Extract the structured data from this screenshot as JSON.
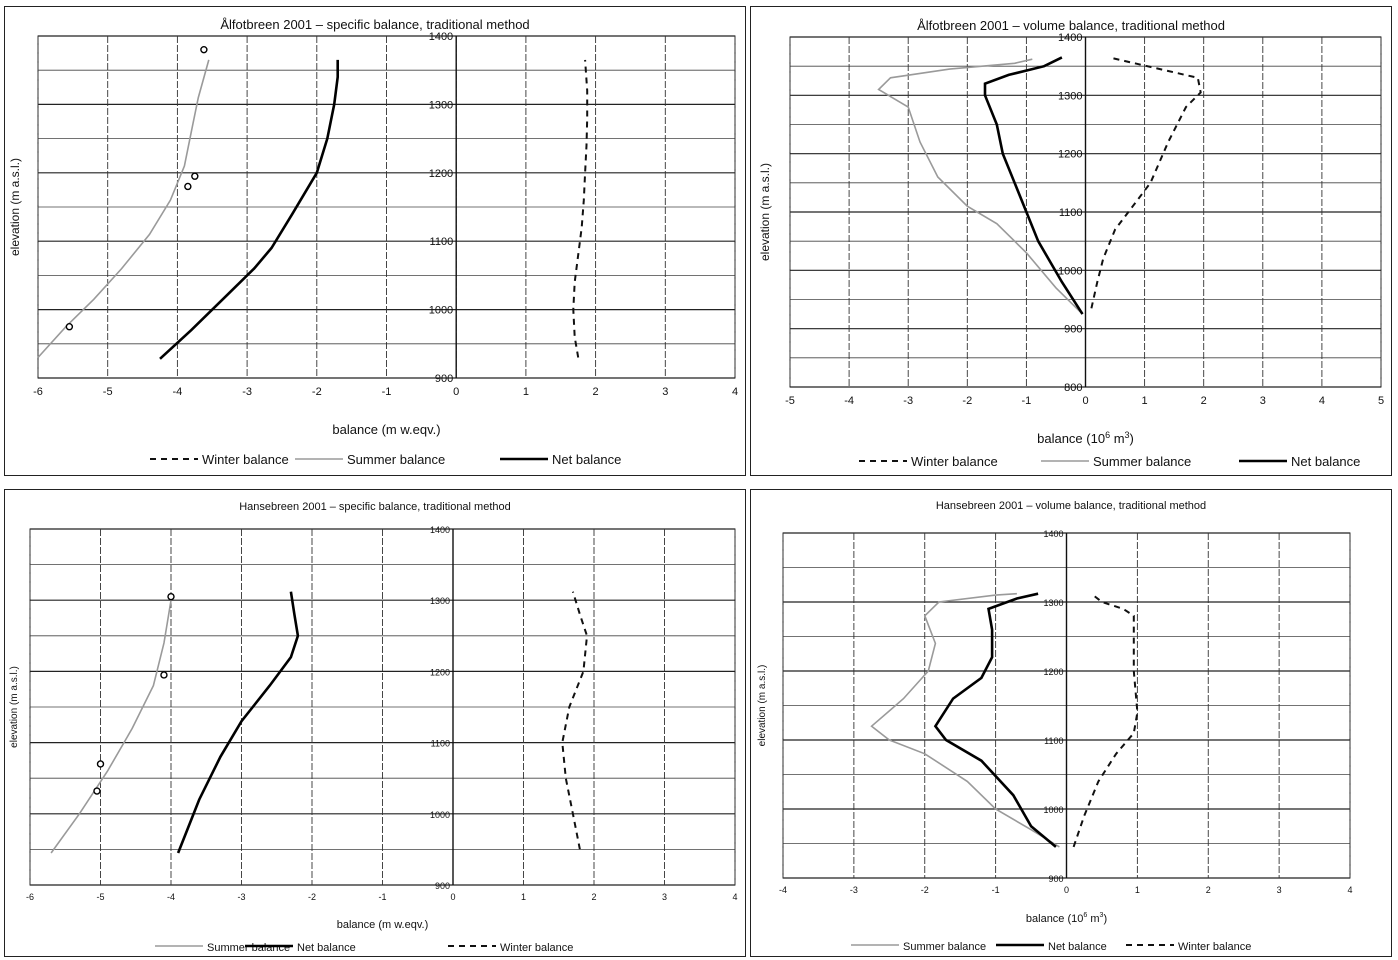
{
  "chart_data": [
    {
      "type": "line",
      "title": "Ålfotbreen  2001 –  specific balance, traditional method",
      "xlabel": "balance (m w.eqv.)",
      "ylabel": "elevation (m a.s.l.)",
      "xlim": [
        -6,
        4
      ],
      "ylim": [
        900,
        1400
      ],
      "xticks": [
        "-6",
        "-5",
        "-4",
        "-3",
        "-2",
        "-1",
        "0",
        "1",
        "2",
        "3",
        "4"
      ],
      "yticks": [
        "900",
        "1000",
        "1100",
        "1200",
        "1300",
        "1400"
      ],
      "grid": true,
      "legend_position": "bottom",
      "legend": [
        "Winter balance",
        "Summer balance",
        "Net balance"
      ],
      "series": [
        {
          "name": "Winter balance",
          "style": "dashed",
          "color": "#111111",
          "points": [
            [
              1.75,
              930
            ],
            [
              1.7,
              960
            ],
            [
              1.68,
              1000
            ],
            [
              1.7,
              1040
            ],
            [
              1.75,
              1080
            ],
            [
              1.8,
              1120
            ],
            [
              1.83,
              1160
            ],
            [
              1.85,
              1200
            ],
            [
              1.87,
              1240
            ],
            [
              1.88,
              1280
            ],
            [
              1.88,
              1320
            ],
            [
              1.85,
              1365
            ]
          ]
        },
        {
          "name": "Summer balance",
          "style": "solid-gray",
          "color": "#9a9a9a",
          "points": [
            [
              -6.0,
              930
            ],
            [
              -5.6,
              975
            ],
            [
              -5.2,
              1015
            ],
            [
              -4.8,
              1060
            ],
            [
              -4.4,
              1110
            ],
            [
              -4.1,
              1160
            ],
            [
              -3.9,
              1210
            ],
            [
              -3.8,
              1260
            ],
            [
              -3.7,
              1310
            ],
            [
              -3.55,
              1365
            ]
          ]
        },
        {
          "name": "Net balance",
          "style": "solid-thick",
          "color": "#000000",
          "points": [
            [
              -4.25,
              928
            ],
            [
              -3.8,
              970
            ],
            [
              -3.3,
              1020
            ],
            [
              -2.9,
              1060
            ],
            [
              -2.65,
              1090
            ],
            [
              -2.35,
              1140
            ],
            [
              -2.0,
              1200
            ],
            [
              -1.85,
              1250
            ],
            [
              -1.75,
              1300
            ],
            [
              -1.7,
              1340
            ],
            [
              -1.7,
              1365
            ]
          ]
        },
        {
          "name": "",
          "style": "markers",
          "color": "#000000",
          "points": [
            [
              -5.55,
              975
            ],
            [
              -3.85,
              1180
            ],
            [
              -3.75,
              1195
            ],
            [
              -3.62,
              1380
            ]
          ]
        }
      ]
    },
    {
      "type": "line",
      "title": "Ålfotbreen  2001 –  volume balance, traditional method",
      "xlabel": "balance (10",
      "xlabel_sup": "6",
      "xlabel_tail": " m",
      "xlabel_sup2": "3",
      "xlabel_end": ")",
      "ylabel": "elevation (m a.s.l.)",
      "xlim": [
        -5,
        5
      ],
      "ylim": [
        800,
        1400
      ],
      "xticks": [
        "-5",
        "-4",
        "-3",
        "-2",
        "-1",
        "0",
        "1",
        "2",
        "3",
        "4",
        "5"
      ],
      "yticks": [
        "800",
        "900",
        "1000",
        "1100",
        "1200",
        "1300",
        "1400"
      ],
      "grid": true,
      "legend_position": "bottom",
      "legend": [
        "Winter balance",
        "Summer balance",
        "Net balance"
      ],
      "series": [
        {
          "name": "Winter balance",
          "style": "dashed",
          "color": "#111111",
          "points": [
            [
              0.1,
              935
            ],
            [
              0.2,
              980
            ],
            [
              0.3,
              1020
            ],
            [
              0.5,
              1070
            ],
            [
              0.8,
              1110
            ],
            [
              1.1,
              1150
            ],
            [
              1.4,
              1220
            ],
            [
              1.7,
              1280
            ],
            [
              1.95,
              1305
            ],
            [
              1.9,
              1330
            ],
            [
              0.4,
              1365
            ]
          ]
        },
        {
          "name": "Summer balance",
          "style": "solid-gray",
          "color": "#9a9a9a",
          "points": [
            [
              -0.05,
              925
            ],
            [
              -0.5,
              970
            ],
            [
              -1.0,
              1030
            ],
            [
              -1.5,
              1080
            ],
            [
              -2.0,
              1110
            ],
            [
              -2.5,
              1160
            ],
            [
              -2.8,
              1220
            ],
            [
              -3.0,
              1280
            ],
            [
              -3.5,
              1310
            ],
            [
              -3.3,
              1330
            ],
            [
              -2.3,
              1345
            ],
            [
              -1.2,
              1355
            ],
            [
              -0.9,
              1362
            ]
          ]
        },
        {
          "name": "Net balance",
          "style": "solid-thick",
          "color": "#000000",
          "points": [
            [
              -0.05,
              925
            ],
            [
              -0.4,
              980
            ],
            [
              -0.8,
              1050
            ],
            [
              -1.0,
              1100
            ],
            [
              -1.2,
              1150
            ],
            [
              -1.4,
              1200
            ],
            [
              -1.5,
              1250
            ],
            [
              -1.7,
              1300
            ],
            [
              -1.7,
              1320
            ],
            [
              -1.3,
              1335
            ],
            [
              -0.7,
              1350
            ],
            [
              -0.4,
              1365
            ]
          ]
        }
      ]
    },
    {
      "type": "line",
      "title": "Hansebreen 2001 –  specific balance, traditional method",
      "xlabel": "balance (m w.eqv.)",
      "ylabel": "elevation (m a.s.l.)",
      "xlim": [
        -6,
        4
      ],
      "ylim": [
        900,
        1400
      ],
      "xticks": [
        "-6",
        "-5",
        "-4",
        "-3",
        "-2",
        "-1",
        "0",
        "1",
        "2",
        "3",
        "4"
      ],
      "yticks": [
        "900",
        "1000",
        "1100",
        "1200",
        "1300",
        "1400"
      ],
      "grid": true,
      "legend_position": "bottom",
      "legend": [
        "Summer balance",
        "Net balance",
        "Winter balance"
      ],
      "series": [
        {
          "name": "Summer balance",
          "style": "solid-gray",
          "color": "#9a9a9a",
          "points": [
            [
              -5.7,
              945
            ],
            [
              -5.3,
              1000
            ],
            [
              -4.9,
              1060
            ],
            [
              -4.55,
              1120
            ],
            [
              -4.25,
              1180
            ],
            [
              -4.1,
              1240
            ],
            [
              -4.0,
              1300
            ]
          ]
        },
        {
          "name": "Net balance",
          "style": "solid-thick",
          "color": "#000000",
          "points": [
            [
              -3.9,
              945
            ],
            [
              -3.6,
              1020
            ],
            [
              -3.3,
              1080
            ],
            [
              -3.0,
              1130
            ],
            [
              -2.6,
              1180
            ],
            [
              -2.3,
              1220
            ],
            [
              -2.2,
              1250
            ],
            [
              -2.25,
              1280
            ],
            [
              -2.3,
              1312
            ]
          ]
        },
        {
          "name": "Winter balance",
          "style": "dashed",
          "color": "#111111",
          "points": [
            [
              1.8,
              950
            ],
            [
              1.7,
              1000
            ],
            [
              1.6,
              1050
            ],
            [
              1.55,
              1100
            ],
            [
              1.65,
              1150
            ],
            [
              1.85,
              1200
            ],
            [
              1.9,
              1250
            ],
            [
              1.8,
              1280
            ],
            [
              1.7,
              1312
            ]
          ]
        },
        {
          "name": "",
          "style": "markers",
          "color": "#000000",
          "points": [
            [
              -5.05,
              1032
            ],
            [
              -5.0,
              1070
            ],
            [
              -4.1,
              1195
            ],
            [
              -4.0,
              1305
            ]
          ]
        }
      ]
    },
    {
      "type": "line",
      "title": "Hansebreen 2001 –  volume balance, traditional method",
      "xlabel": "balance (10",
      "xlabel_sup": "6",
      "xlabel_tail": " m",
      "xlabel_sup2": "3",
      "xlabel_end": ")",
      "ylabel": "elevation (m a.s.l.)",
      "xlim": [
        -4,
        4
      ],
      "ylim": [
        900,
        1400
      ],
      "xticks": [
        "-4",
        "-3",
        "-2",
        "-1",
        "0",
        "1",
        "2",
        "3",
        "4"
      ],
      "yticks": [
        "900",
        "1000",
        "1100",
        "1200",
        "1300",
        "1400"
      ],
      "grid": true,
      "legend_position": "bottom",
      "legend": [
        "Summer balance",
        "Net balance",
        "Winter balance"
      ],
      "series": [
        {
          "name": "Summer balance",
          "style": "solid-gray",
          "color": "#9a9a9a",
          "points": [
            [
              -0.1,
              945
            ],
            [
              -0.5,
              970
            ],
            [
              -1.0,
              1000
            ],
            [
              -1.4,
              1040
            ],
            [
              -2.0,
              1080
            ],
            [
              -2.5,
              1100
            ],
            [
              -2.75,
              1120
            ],
            [
              -2.3,
              1160
            ],
            [
              -1.95,
              1200
            ],
            [
              -1.85,
              1240
            ],
            [
              -2.0,
              1280
            ],
            [
              -1.8,
              1300
            ],
            [
              -1.0,
              1310
            ],
            [
              -0.7,
              1312
            ]
          ]
        },
        {
          "name": "Net balance",
          "style": "solid-thick",
          "color": "#000000",
          "points": [
            [
              -0.15,
              945
            ],
            [
              -0.5,
              975
            ],
            [
              -0.75,
              1020
            ],
            [
              -1.2,
              1070
            ],
            [
              -1.7,
              1100
            ],
            [
              -1.85,
              1120
            ],
            [
              -1.6,
              1160
            ],
            [
              -1.2,
              1190
            ],
            [
              -1.05,
              1220
            ],
            [
              -1.05,
              1260
            ],
            [
              -1.1,
              1290
            ],
            [
              -0.7,
              1305
            ],
            [
              -0.4,
              1312
            ]
          ]
        },
        {
          "name": "Winter balance",
          "style": "dashed",
          "color": "#111111",
          "points": [
            [
              0.1,
              945
            ],
            [
              0.25,
              990
            ],
            [
              0.45,
              1040
            ],
            [
              0.7,
              1080
            ],
            [
              0.95,
              1110
            ],
            [
              1.0,
              1140
            ],
            [
              0.95,
              1200
            ],
            [
              0.95,
              1260
            ],
            [
              0.95,
              1280
            ],
            [
              0.8,
              1290
            ],
            [
              0.5,
              1300
            ],
            [
              0.35,
              1312
            ]
          ]
        }
      ]
    }
  ]
}
